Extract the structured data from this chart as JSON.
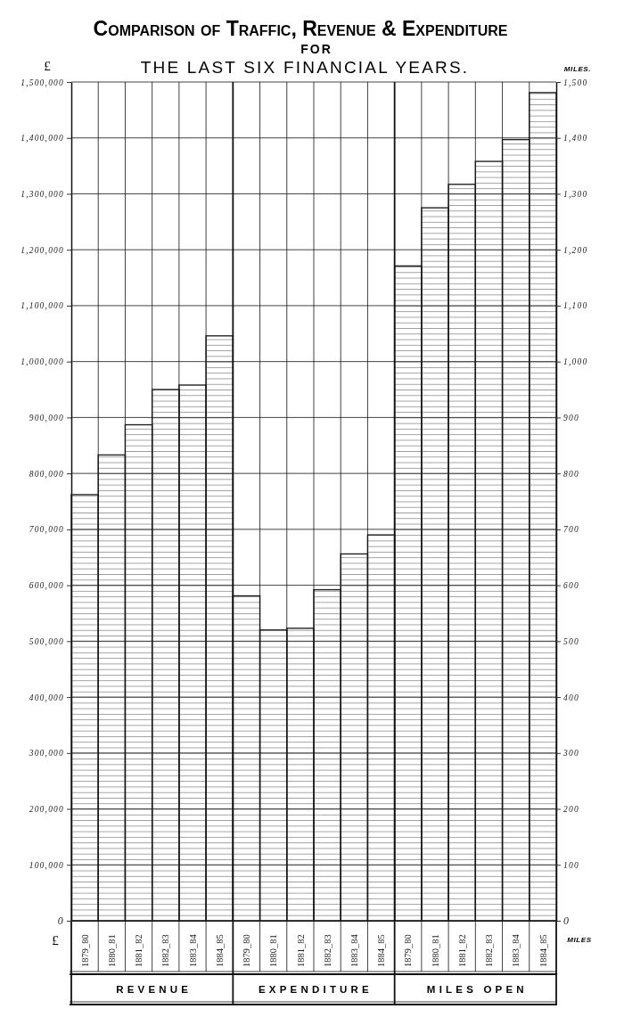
{
  "chart_data": [
    {
      "type": "bar",
      "title": "Comparison of Traffic, Revenue & Expenditure",
      "subtitle": "FOR THE LAST SIX FINANCIAL YEARS.",
      "xlabel": "REVENUE",
      "ylabel": "£",
      "annotations": [
        "£"
      ],
      "categories": [
        "1879_80",
        "1880_81",
        "1881_82",
        "1882_83",
        "1883_84",
        "1884_85"
      ],
      "values": [
        762000,
        833000,
        887000,
        950000,
        958000,
        1046000
      ],
      "color": "#222222",
      "ylim": [
        0,
        1500000
      ],
      "yticks": [
        0,
        {
          "value": 100000,
          "label": "100,000"
        },
        {
          "value": 200000,
          "label": "200,000"
        },
        {
          "value": 300000,
          "label": "300,000"
        },
        {
          "value": 400000,
          "label": "400,000"
        },
        {
          "value": 500000,
          "label": "500,000"
        },
        {
          "value": 600000,
          "label": "600,000"
        },
        {
          "value": 700000,
          "label": "700,000"
        },
        {
          "value": 800000,
          "label": "800,000"
        },
        {
          "value": 900000,
          "label": "900,000"
        },
        {
          "value": 1000000,
          "label": "1,000,000"
        },
        {
          "value": 1100000,
          "label": "1,100,000"
        },
        {
          "value": 1200000,
          "label": "1,200,000"
        },
        {
          "value": 1300000,
          "label": "1,300,000"
        },
        {
          "value": 1400000,
          "label": "1,400,000"
        },
        {
          "value": 1500000,
          "label": "1,500,000"
        }
      ],
      "grid": true
    },
    {
      "type": "bar",
      "xlabel": "EXPENDITURE",
      "categories": [
        "1879_80",
        "1880_81",
        "1881_82",
        "1882_83",
        "1883_84",
        "1884_85"
      ],
      "values": [
        581000,
        520000,
        523000,
        592000,
        656000,
        690000
      ],
      "color": "#222222",
      "ylim": [
        0,
        1500000
      ],
      "yticks": [
        0,
        100000,
        200000,
        300000,
        400000,
        500000,
        600000,
        700000,
        800000,
        900000,
        1000000,
        1100000,
        1200000,
        1300000,
        1400000,
        1500000
      ],
      "grid": true,
      "tick_labels": "x"
    },
    {
      "type": "bar",
      "xlabel": "MILES OPEN",
      "ylabel": "MILES.",
      "annotations": [
        "MILES"
      ],
      "categories": [
        "1879_80",
        "1880_81",
        "1881_82",
        "1882_83",
        "1883_84",
        "1884_85"
      ],
      "values": [
        1171,
        1275,
        1317,
        1358,
        1397,
        1481
      ],
      "color": "#222222",
      "ylim": [
        0,
        1500
      ],
      "yticks": [
        0,
        100,
        200,
        300,
        400,
        500,
        600,
        700,
        800,
        900,
        {
          "value": 1000,
          "label": "1,000"
        },
        {
          "value": 1100,
          "label": "1,100"
        },
        {
          "value": 1200,
          "label": "1,200"
        },
        {
          "value": 1300,
          "label": "1,300"
        },
        {
          "value": 1400,
          "label": "1,400"
        },
        {
          "value": 1500,
          "label": "1,500"
        }
      ],
      "grid": true
    }
  ]
}
